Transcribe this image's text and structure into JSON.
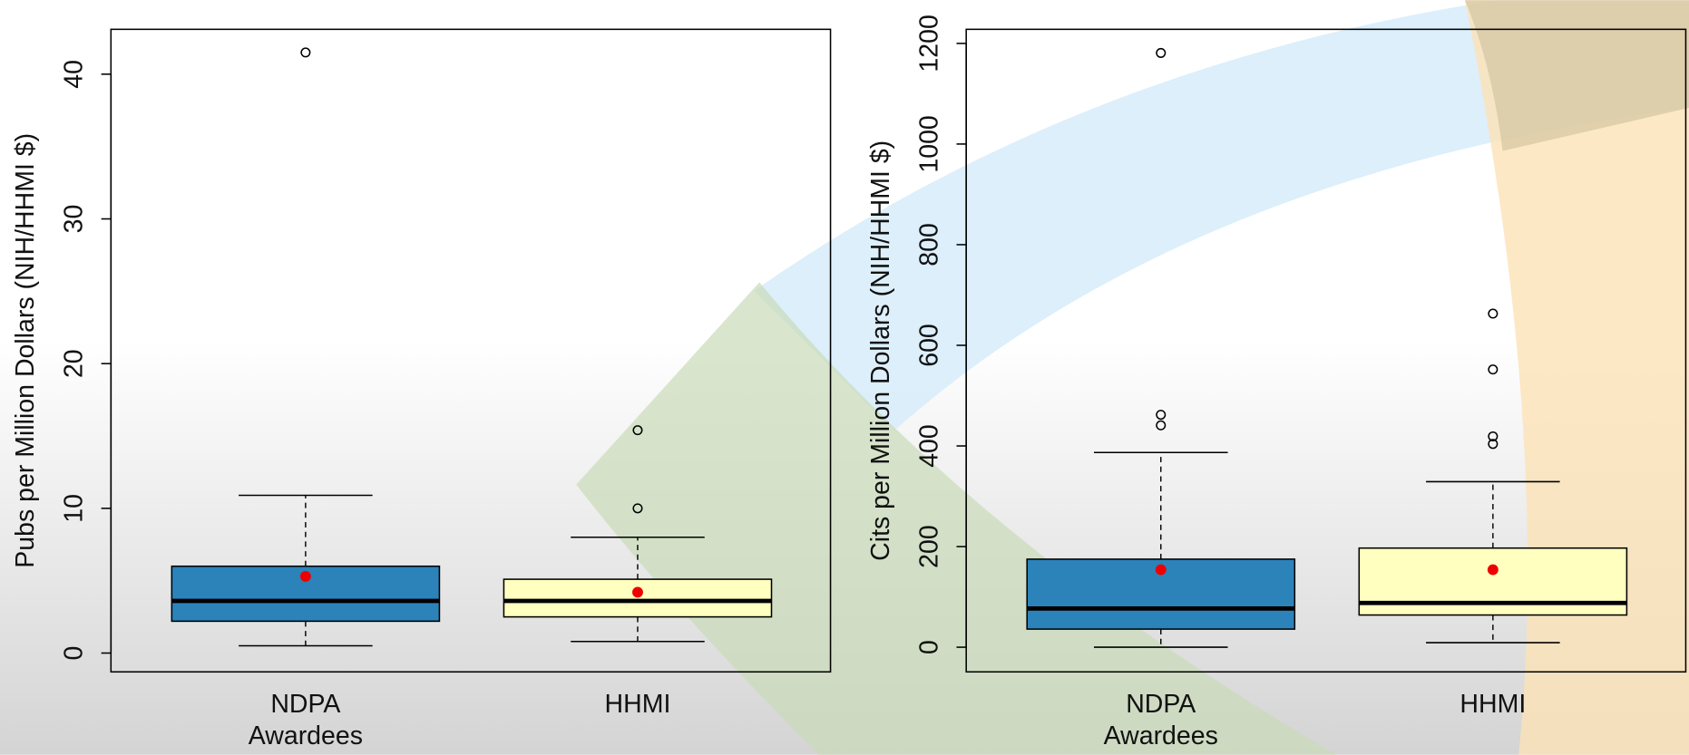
{
  "chart_data": [
    {
      "type": "box",
      "ylabel": "Pubs per Million Dollars (NIH/HHMI $)",
      "categories": [
        "NDPA Awardees",
        "HHMI"
      ],
      "colors": [
        "#2b83ba",
        "#ffffc0"
      ],
      "mean_color": "#ee0000",
      "boxes": [
        {
          "whislo": 0.5,
          "q1": 2.2,
          "med": 3.6,
          "q3": 6.0,
          "whishi": 10.9,
          "mean": 5.3,
          "outliers": [
            41.5
          ]
        },
        {
          "whislo": 0.8,
          "q1": 2.5,
          "med": 3.6,
          "q3": 5.1,
          "whishi": 8.0,
          "mean": 4.2,
          "outliers": [
            15.4,
            10.0
          ]
        }
      ],
      "ylim": [
        -1.3,
        43.1
      ],
      "yticks": [
        0,
        10,
        20,
        30,
        40
      ]
    },
    {
      "type": "box",
      "ylabel": "Cits per Million Dollars (NIH/HHMI $)",
      "categories": [
        "NDPA Awardees",
        "HHMI"
      ],
      "colors": [
        "#2b83ba",
        "#ffffc0"
      ],
      "mean_color": "#ee0000",
      "boxes": [
        {
          "whislo": 0,
          "q1": 36,
          "med": 77,
          "q3": 175,
          "whishi": 387,
          "mean": 154,
          "outliers": [
            1181,
            462,
            441
          ]
        },
        {
          "whislo": 9,
          "q1": 64,
          "med": 88,
          "q3": 197,
          "whishi": 329,
          "mean": 154,
          "outliers": [
            663,
            552,
            419,
            404
          ]
        }
      ],
      "ylim": [
        -49,
        1228
      ],
      "yticks": [
        0,
        200,
        400,
        600,
        800,
        1000,
        1200
      ]
    }
  ]
}
